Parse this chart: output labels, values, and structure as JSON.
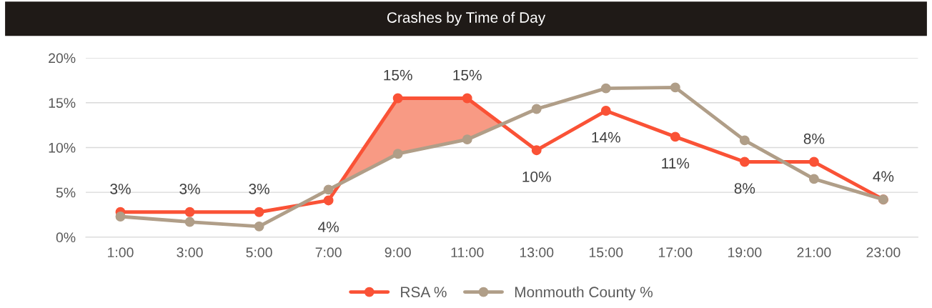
{
  "chart_data": {
    "type": "line",
    "title": "Crashes by Time of Day",
    "categories": [
      "1:00",
      "3:00",
      "5:00",
      "7:00",
      "9:00",
      "11:00",
      "13:00",
      "15:00",
      "17:00",
      "19:00",
      "21:00",
      "23:00"
    ],
    "series": [
      {
        "name": "RSA %",
        "color": "#fa5236",
        "values": [
          2.8,
          2.8,
          2.8,
          4.1,
          15.5,
          15.5,
          9.7,
          14.1,
          11.2,
          8.4,
          8.4,
          4.2
        ],
        "value_labels": [
          "3%",
          "3%",
          "3%",
          "4%",
          "15%",
          "15%",
          "10%",
          "14%",
          "11%",
          "8%",
          "8%",
          "4%"
        ]
      },
      {
        "name": "Monmouth County %",
        "color": "#b09e88",
        "values": [
          2.3,
          1.7,
          1.2,
          5.3,
          9.3,
          10.9,
          14.3,
          16.6,
          16.7,
          10.8,
          6.5,
          4.2
        ]
      }
    ],
    "ylim": [
      0,
      20
    ],
    "yticks": [
      {
        "value": 0,
        "label": "0%"
      },
      {
        "value": 5,
        "label": "5%"
      },
      {
        "value": 10,
        "label": "10%"
      },
      {
        "value": 15,
        "label": "15%"
      },
      {
        "value": 20,
        "label": "20%"
      }
    ],
    "grid": "y",
    "legend": "bottom",
    "marker": "circle",
    "line_style": "solid"
  }
}
